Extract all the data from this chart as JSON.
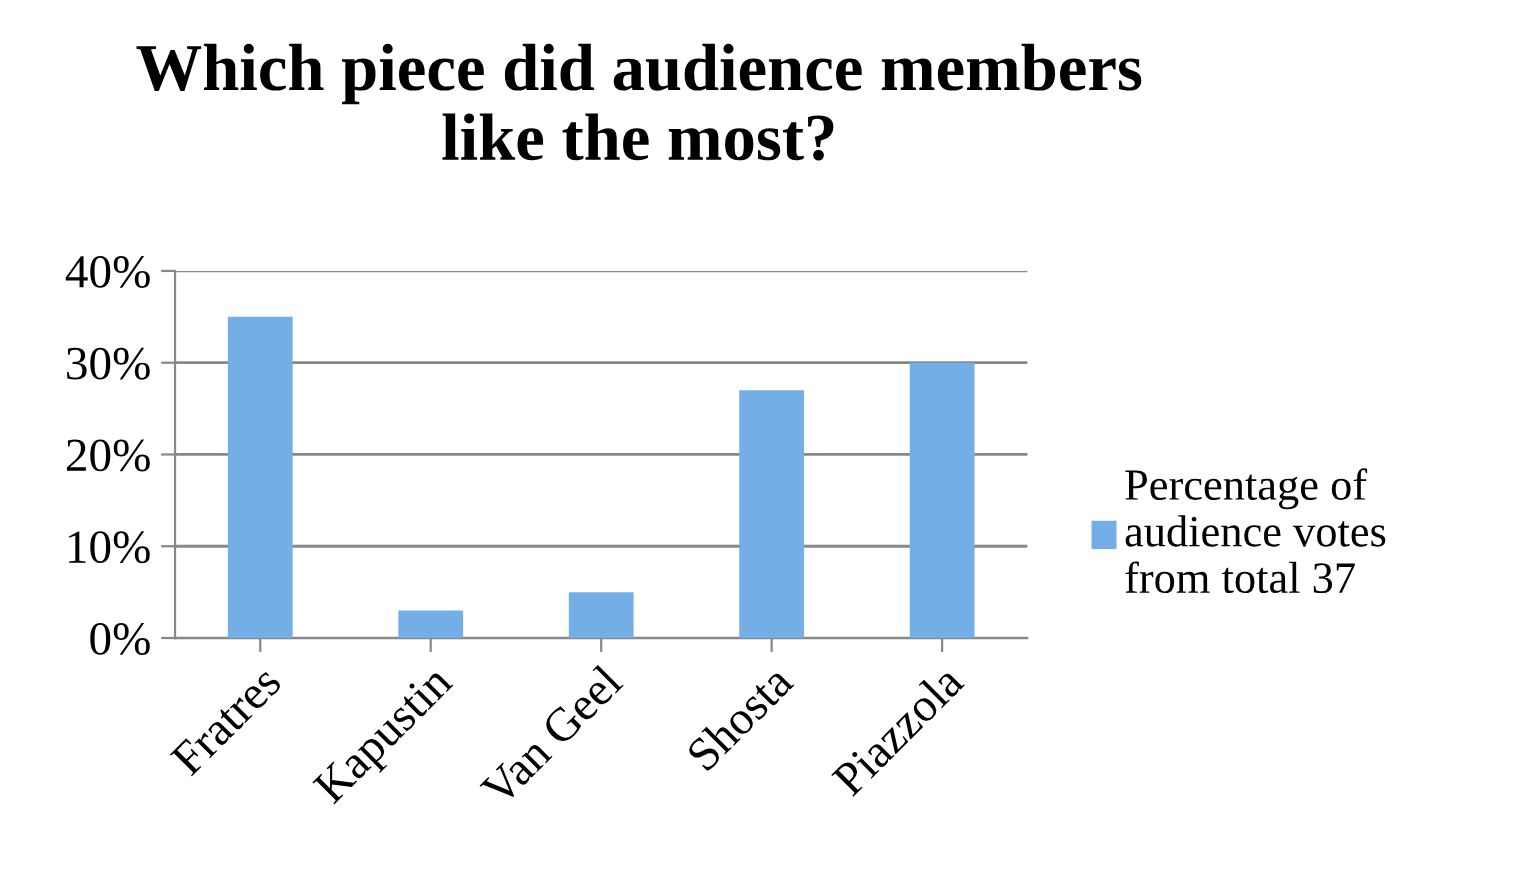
{
  "chart_data": {
    "type": "bar",
    "title": "Which piece did audience members\nlike the most?",
    "categories": [
      "Fratres",
      "Kapustin",
      "Van Geel",
      "Shosta",
      "Piazzola"
    ],
    "series": [
      {
        "name": "Percentage of\naudience votes\nfrom total 37",
        "color": "#74aee6",
        "values": [
          35,
          3,
          5,
          27,
          30
        ]
      }
    ],
    "ylim": [
      0,
      40
    ],
    "yticks": [
      {
        "value": 0,
        "label": "0%"
      },
      {
        "value": 10,
        "label": "10%"
      },
      {
        "value": 20,
        "label": "20%"
      },
      {
        "value": 30,
        "label": "30%"
      },
      {
        "value": 40,
        "label": "40%"
      }
    ],
    "grid": "y",
    "legend": "right"
  }
}
